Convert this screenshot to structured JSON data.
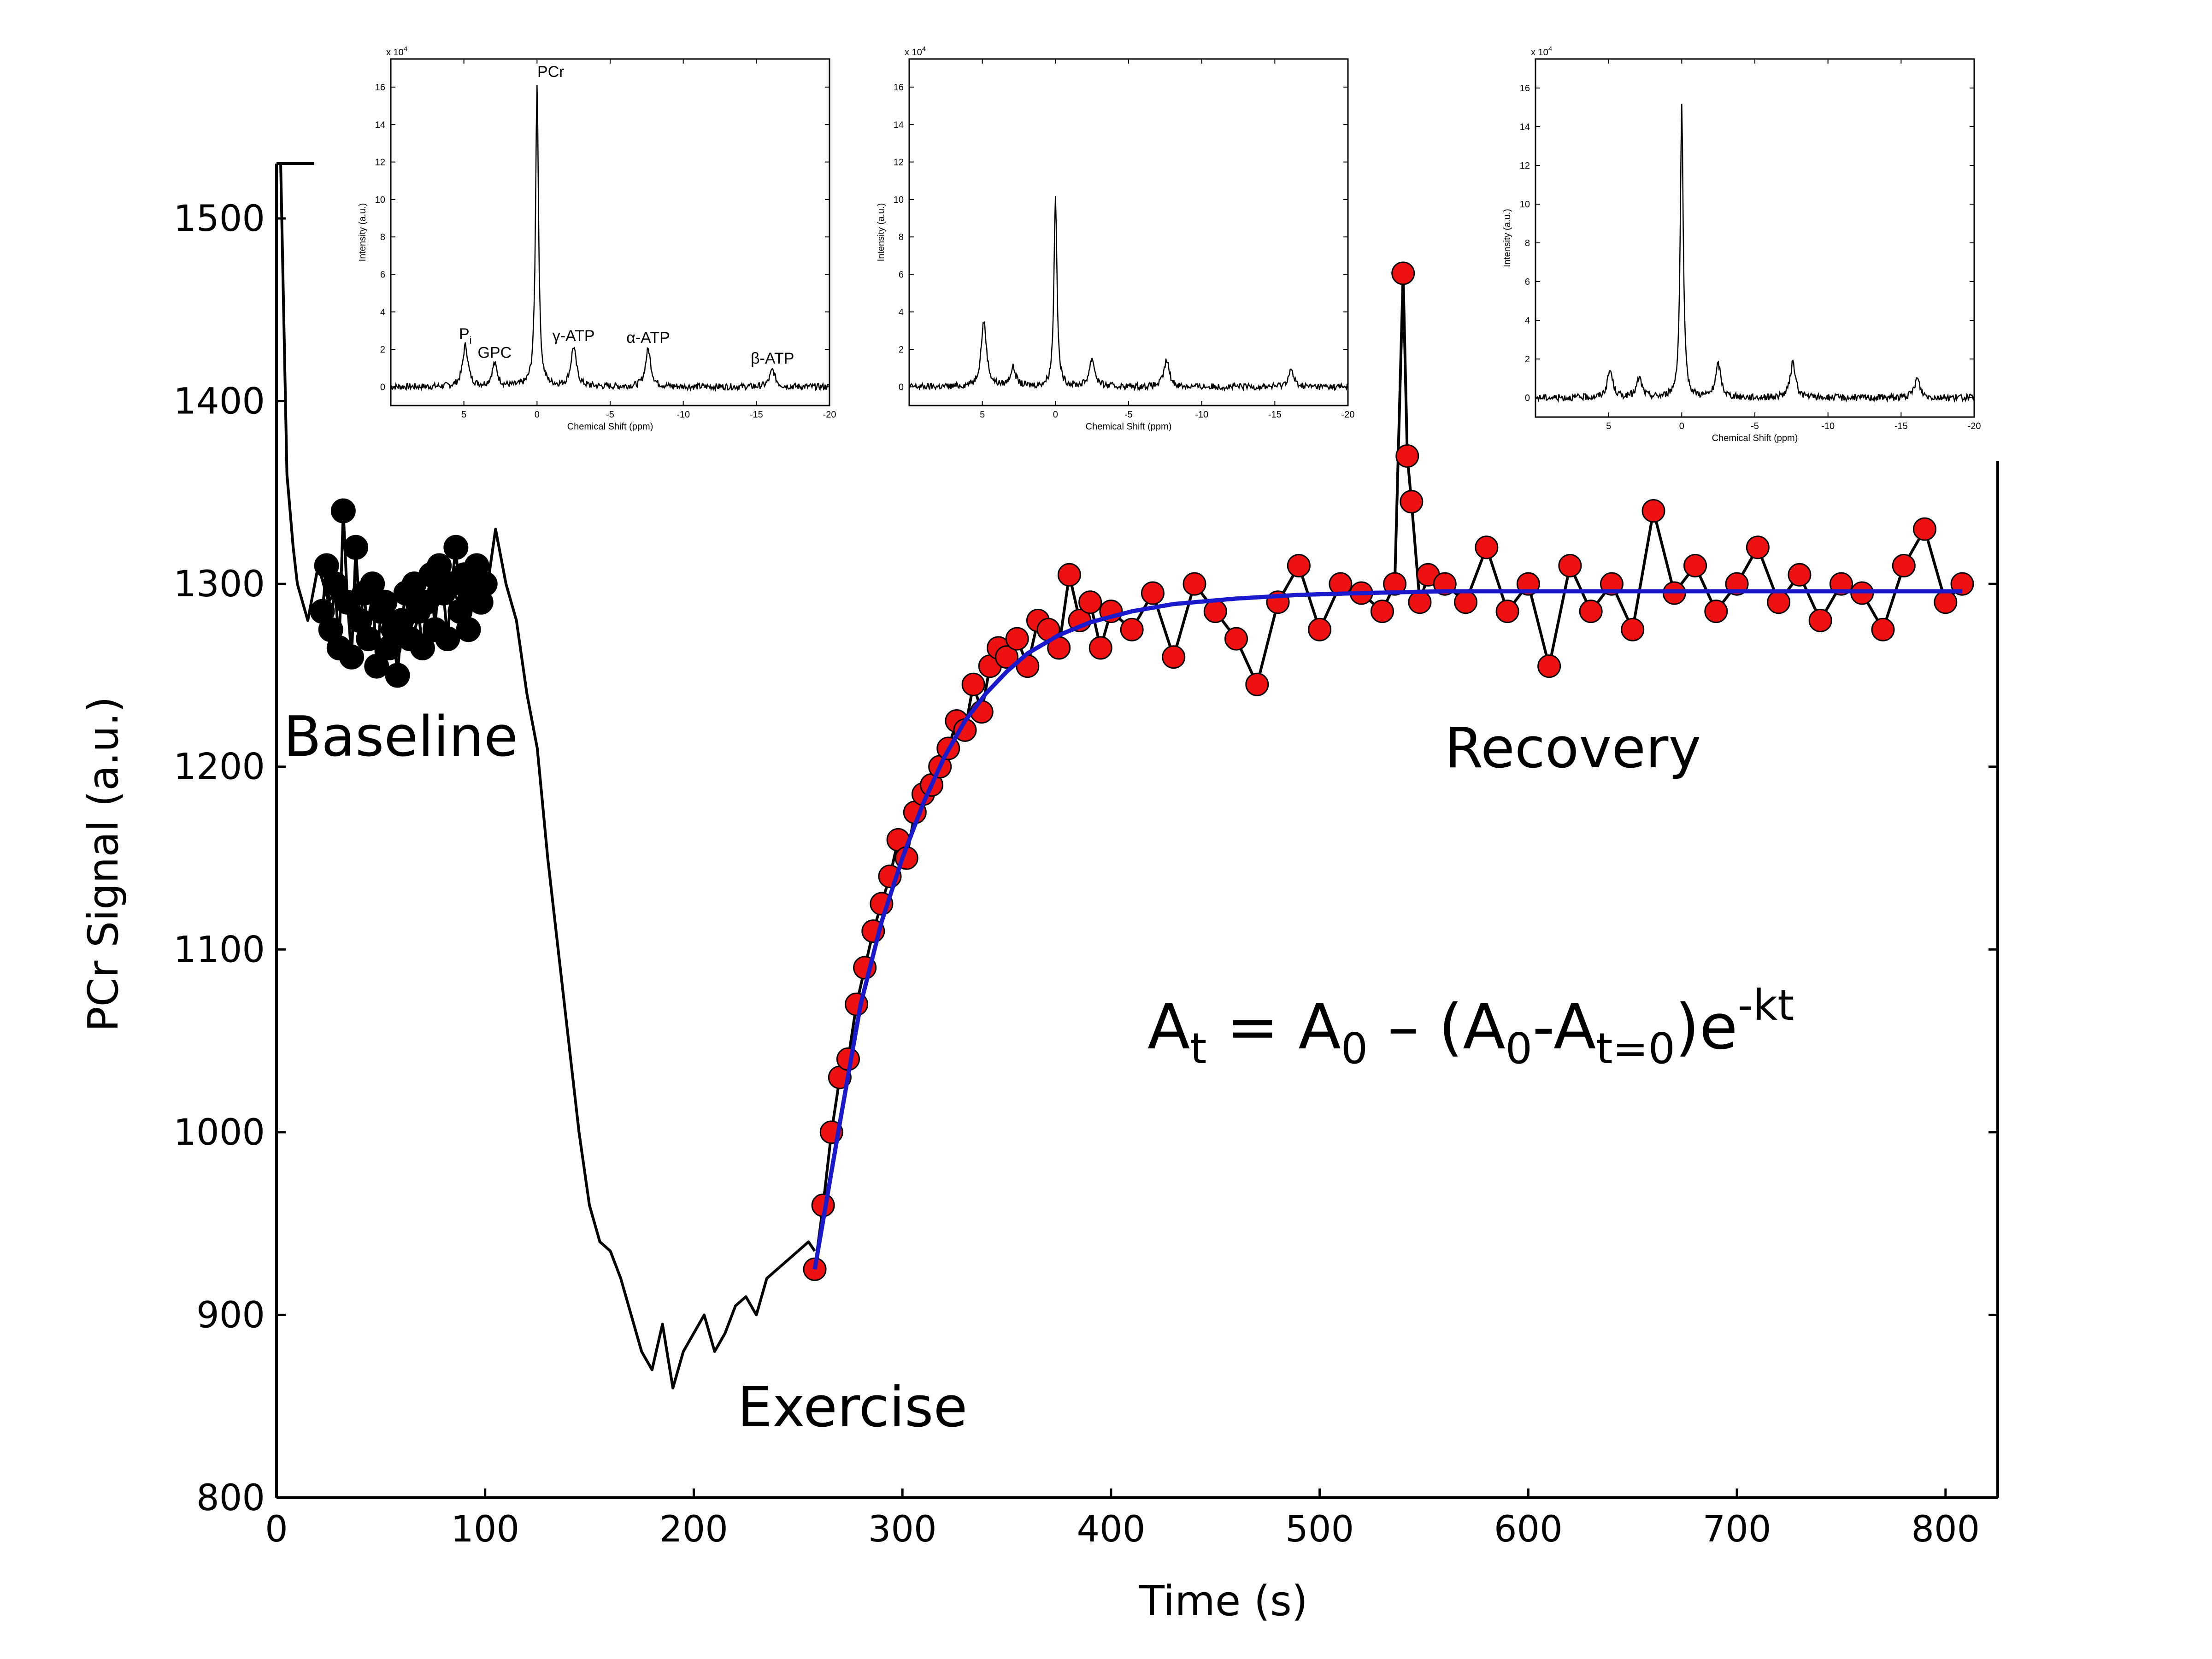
{
  "chart_data": {
    "main": {
      "type": "line",
      "xlabel": "Time (s)",
      "ylabel": "PCr Signal (a.u.)",
      "xlim": [
        0,
        825
      ],
      "ylim": [
        800,
        1530
      ],
      "x_ticks": [
        0,
        100,
        200,
        300,
        400,
        500,
        600,
        700,
        800
      ],
      "y_ticks": [
        800,
        900,
        1000,
        1100,
        1200,
        1300,
        1400,
        1500
      ],
      "phase_labels": [
        {
          "text": "Baseline"
        },
        {
          "text": "Exercise"
        },
        {
          "text": "Recovery"
        }
      ],
      "equation": {
        "A": "A",
        "t": "t",
        "eq": " = ",
        "zero": "0",
        "minus": " – (",
        "dash": "-",
        "tz": "t=0",
        "close": ")e",
        "exp": "-kt"
      },
      "series": [
        {
          "style": "black-line",
          "color": "#000000",
          "x": [
            0,
            2,
            5,
            8,
            10,
            15,
            20,
            25,
            30,
            35,
            40,
            45,
            50,
            55,
            60,
            65,
            70,
            75,
            80,
            85,
            90,
            95,
            100,
            105,
            110,
            115,
            120,
            125,
            130,
            135,
            140,
            145,
            150,
            155,
            160,
            165,
            170,
            175,
            180,
            185,
            190,
            195,
            200,
            205,
            210,
            215,
            220,
            225,
            230,
            235,
            240,
            245,
            250,
            255,
            258
          ],
          "y": [
            1530,
            1530,
            1360,
            1320,
            1300,
            1280,
            1310,
            1290,
            1300,
            1285,
            1280,
            1270,
            1275,
            1265,
            1280,
            1270,
            1290,
            1300,
            1310,
            1295,
            1285,
            1300,
            1290,
            1330,
            1300,
            1280,
            1240,
            1210,
            1150,
            1100,
            1050,
            1000,
            960,
            940,
            935,
            920,
            900,
            880,
            870,
            895,
            860,
            880,
            890,
            900,
            880,
            890,
            905,
            910,
            900,
            920,
            925,
            930,
            935,
            940,
            935
          ]
        },
        {
          "style": "black-markers",
          "name": "Baseline",
          "color": "#000000",
          "x": [
            22,
            24,
            26,
            28,
            30,
            32,
            34,
            36,
            38,
            40,
            42,
            44,
            46,
            48,
            50,
            52,
            54,
            56,
            58,
            60,
            62,
            64,
            66,
            68,
            70,
            72,
            74,
            76,
            78,
            80,
            82,
            84,
            86,
            88,
            90,
            92,
            94,
            96,
            98,
            100
          ],
          "y": [
            1285,
            1310,
            1275,
            1300,
            1265,
            1340,
            1290,
            1260,
            1320,
            1280,
            1295,
            1270,
            1300,
            1255,
            1285,
            1290,
            1265,
            1275,
            1250,
            1280,
            1295,
            1270,
            1300,
            1285,
            1265,
            1290,
            1305,
            1275,
            1310,
            1295,
            1270,
            1300,
            1320,
            1285,
            1305,
            1275,
            1295,
            1310,
            1290,
            1300
          ]
        },
        {
          "style": "red-markers",
          "name": "Recovery",
          "color": "#ee1111",
          "x": [
            258,
            262,
            266,
            270,
            274,
            278,
            282,
            286,
            290,
            294,
            298,
            302,
            306,
            310,
            314,
            318,
            322,
            326,
            330,
            334,
            338,
            342,
            346,
            350,
            355,
            360,
            365,
            370,
            375,
            380,
            385,
            390,
            395,
            400,
            410,
            420,
            430,
            440,
            450,
            460,
            470,
            480,
            490,
            500,
            510,
            520,
            530,
            536,
            540,
            542,
            544,
            548,
            552,
            560,
            570,
            580,
            590,
            600,
            610,
            620,
            630,
            640,
            650,
            660,
            670,
            680,
            690,
            700,
            710,
            720,
            730,
            740,
            750,
            760,
            770,
            780,
            790,
            800,
            808
          ],
          "y": [
            925,
            960,
            1000,
            1030,
            1040,
            1070,
            1090,
            1110,
            1125,
            1140,
            1160,
            1150,
            1175,
            1185,
            1190,
            1200,
            1210,
            1225,
            1220,
            1245,
            1230,
            1255,
            1265,
            1260,
            1270,
            1255,
            1280,
            1275,
            1265,
            1305,
            1280,
            1290,
            1265,
            1285,
            1275,
            1295,
            1260,
            1300,
            1285,
            1270,
            1245,
            1290,
            1310,
            1275,
            1300,
            1295,
            1285,
            1300,
            1470,
            1370,
            1345,
            1290,
            1305,
            1300,
            1290,
            1320,
            1285,
            1300,
            1255,
            1310,
            1285,
            1300,
            1275,
            1340,
            1295,
            1310,
            1285,
            1300,
            1320,
            1290,
            1305,
            1280,
            1300,
            1295,
            1275,
            1310,
            1330,
            1290,
            1300
          ]
        },
        {
          "style": "blue-fit",
          "name": "fit",
          "color": "#1a1acc",
          "x": [
            258,
            270,
            280,
            290,
            300,
            310,
            320,
            330,
            340,
            350,
            360,
            375,
            390,
            410,
            430,
            460,
            490,
            520,
            560,
            600,
            650,
            700,
            750,
            808
          ],
          "y": [
            925,
            1005,
            1070,
            1115,
            1150,
            1180,
            1205,
            1225,
            1240,
            1252,
            1262,
            1272,
            1279,
            1285,
            1289,
            1292,
            1294,
            1295,
            1296,
            1296,
            1296,
            1296,
            1296,
            1296
          ]
        }
      ]
    },
    "insets": [
      {
        "xlabel": "Chemical Shift (ppm)",
        "ylabel": "Intensity (a.u.)",
        "exponent": "x 10",
        "exponent_power": "4",
        "xlim": [
          10,
          -20
        ],
        "ylim": [
          -1,
          17.5
        ],
        "x_ticks": [
          5,
          0,
          -5,
          -10,
          -15,
          -20
        ],
        "y_ticks": [
          0,
          2,
          4,
          6,
          8,
          10,
          12,
          14,
          16
        ],
        "peaks": [
          {
            "ppm": 4.9,
            "height": 2.2
          },
          {
            "ppm": 2.9,
            "height": 1.2
          },
          {
            "ppm": 0,
            "height": 16.2
          },
          {
            "ppm": -2.5,
            "height": 2.1
          },
          {
            "ppm": -7.6,
            "height": 2.0
          },
          {
            "ppm": -16.1,
            "height": 0.9
          }
        ],
        "labels": [
          {
            "text": "P",
            "sub": "i"
          },
          {
            "text": "GPC"
          },
          {
            "text": "PCr"
          },
          {
            "text": "γ-ATP"
          },
          {
            "text": "α-ATP"
          },
          {
            "text": "β-ATP"
          }
        ]
      },
      {
        "xlabel": "Chemical Shift (ppm)",
        "ylabel": "Intensity (a.u.)",
        "exponent": "x 10",
        "exponent_power": "4",
        "xlim": [
          10,
          -20
        ],
        "ylim": [
          -1,
          17.5
        ],
        "x_ticks": [
          5,
          0,
          -5,
          -10,
          -15,
          -20
        ],
        "y_ticks": [
          0,
          2,
          4,
          6,
          8,
          10,
          12,
          14,
          16
        ],
        "peaks": [
          {
            "ppm": 4.9,
            "height": 3.5
          },
          {
            "ppm": 2.9,
            "height": 1.0
          },
          {
            "ppm": 0,
            "height": 10.3
          },
          {
            "ppm": -2.5,
            "height": 1.5
          },
          {
            "ppm": -7.6,
            "height": 1.4
          },
          {
            "ppm": -16.1,
            "height": 0.9
          }
        ]
      },
      {
        "xlabel": "Chemical Shift (ppm)",
        "ylabel": "Intensity (a.u.)",
        "exponent": "x 10",
        "exponent_power": "4",
        "xlim": [
          10,
          -20
        ],
        "ylim": [
          -1,
          17.5
        ],
        "x_ticks": [
          5,
          0,
          -5,
          -10,
          -15,
          -20
        ],
        "y_ticks": [
          0,
          2,
          4,
          6,
          8,
          10,
          12,
          14,
          16
        ],
        "peaks": [
          {
            "ppm": 4.9,
            "height": 1.4
          },
          {
            "ppm": 2.9,
            "height": 1.0
          },
          {
            "ppm": 0,
            "height": 15.0
          },
          {
            "ppm": -2.5,
            "height": 1.7
          },
          {
            "ppm": -7.6,
            "height": 1.8
          },
          {
            "ppm": -16.1,
            "height": 1.0
          }
        ]
      }
    ]
  }
}
